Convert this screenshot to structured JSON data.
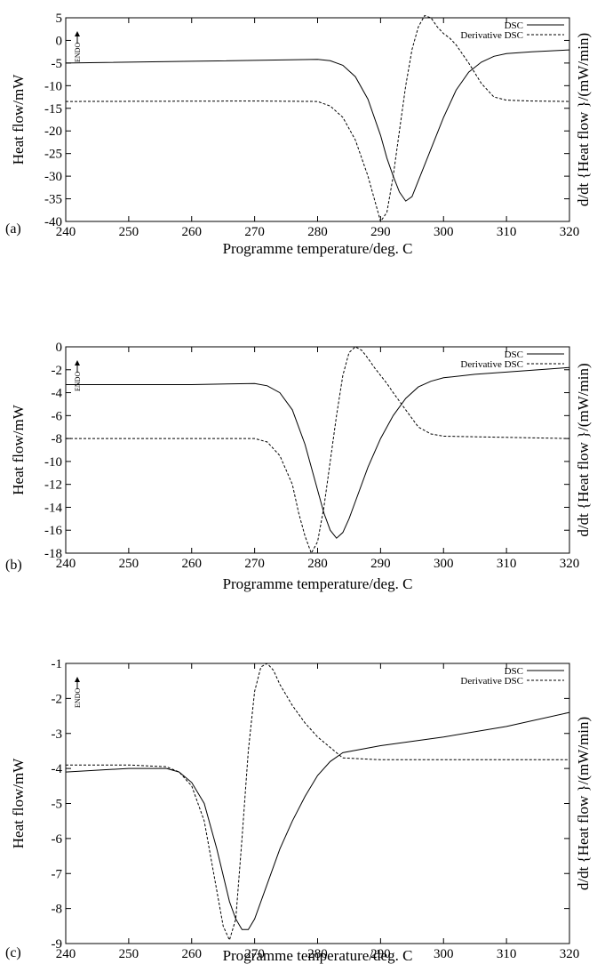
{
  "chart_data": [
    {
      "type": "line",
      "panel_label": "(a)",
      "title": "",
      "xlabel": "Programme temperature/deg. C",
      "ylabel": "Heat flow/mW",
      "ylabel_right": "d/dt {Heat flow }/(mW/min)",
      "endo_label": "ENDO",
      "xlim": [
        240,
        320
      ],
      "ylim": [
        -40,
        5
      ],
      "x_ticks": [
        240,
        250,
        260,
        270,
        280,
        290,
        300,
        310,
        320
      ],
      "y_ticks": [
        -40,
        -35,
        -30,
        -25,
        -20,
        -15,
        -10,
        -5,
        0,
        5
      ],
      "grid": false,
      "legend_position": "top-right",
      "series": [
        {
          "name": "DSC",
          "dash": "solid",
          "x": [
            240,
            260,
            280,
            282,
            284,
            286,
            288,
            290,
            291,
            292,
            293,
            294,
            295,
            296,
            298,
            300,
            302,
            304,
            306,
            308,
            310,
            314,
            320
          ],
          "y": [
            -5.0,
            -4.6,
            -4.2,
            -4.5,
            -5.5,
            -8.0,
            -13.0,
            -21.0,
            -26.0,
            -30.0,
            -33.5,
            -35.5,
            -34.5,
            -31.0,
            -24.0,
            -17.0,
            -11.0,
            -7.0,
            -4.8,
            -3.5,
            -2.9,
            -2.5,
            -2.1
          ]
        },
        {
          "name": "Derivative DSC",
          "dash": "dashed",
          "x": [
            240,
            270,
            280,
            282,
            284,
            286,
            288,
            289,
            290,
            291,
            292,
            293,
            294,
            295,
            296,
            297,
            298,
            299,
            300,
            301,
            302,
            304,
            306,
            308,
            310,
            314,
            320
          ],
          "y": [
            -13.5,
            -13.4,
            -13.5,
            -14.5,
            -17.0,
            -22.0,
            -30.0,
            -35.0,
            -40.0,
            -38.0,
            -30.0,
            -20.0,
            -10.0,
            -2.0,
            3.0,
            5.5,
            5.0,
            3.0,
            1.5,
            0.5,
            -1.0,
            -5.0,
            -9.5,
            -12.5,
            -13.2,
            -13.4,
            -13.5
          ]
        }
      ]
    },
    {
      "type": "line",
      "panel_label": "(b)",
      "title": "",
      "xlabel": "Programme temperature/deg. C",
      "ylabel": "Heat flow/mW",
      "ylabel_right": "d/dt {Heat flow }/(mW/min)",
      "endo_label": "ENDO",
      "xlim": [
        240,
        320
      ],
      "ylim": [
        -18,
        0
      ],
      "x_ticks": [
        240,
        250,
        260,
        270,
        280,
        290,
        300,
        310,
        320
      ],
      "y_ticks": [
        -18,
        -16,
        -14,
        -12,
        -10,
        -8,
        -6,
        -4,
        -2,
        0
      ],
      "grid": false,
      "legend_position": "top-right",
      "series": [
        {
          "name": "DSC",
          "dash": "solid",
          "x": [
            240,
            260,
            270,
            272,
            274,
            276,
            278,
            280,
            281,
            282,
            283,
            284,
            285,
            286,
            288,
            290,
            292,
            294,
            296,
            298,
            300,
            305,
            310,
            320
          ],
          "y": [
            -3.3,
            -3.3,
            -3.2,
            -3.4,
            -4.0,
            -5.5,
            -8.5,
            -12.5,
            -14.5,
            -16.0,
            -16.7,
            -16.2,
            -15.0,
            -13.5,
            -10.5,
            -8.0,
            -6.0,
            -4.5,
            -3.5,
            -3.0,
            -2.7,
            -2.4,
            -2.2,
            -1.8
          ]
        },
        {
          "name": "Derivative DSC",
          "dash": "dashed",
          "x": [
            240,
            260,
            270,
            272,
            274,
            276,
            277,
            278,
            279,
            280,
            281,
            282,
            283,
            284,
            285,
            286,
            287,
            288,
            289,
            290,
            291,
            292,
            294,
            296,
            298,
            300,
            310,
            320
          ],
          "y": [
            -8.0,
            -8.0,
            -8.0,
            -8.3,
            -9.5,
            -12.0,
            -14.5,
            -16.5,
            -18.0,
            -17.0,
            -14.0,
            -10.0,
            -6.0,
            -2.5,
            -0.5,
            0.0,
            -0.3,
            -1.0,
            -1.8,
            -2.5,
            -3.2,
            -4.0,
            -5.5,
            -7.0,
            -7.6,
            -7.8,
            -7.9,
            -8.0
          ]
        }
      ]
    },
    {
      "type": "line",
      "panel_label": "(c)",
      "title": "",
      "xlabel": "Programme temperature/deg. C",
      "ylabel": "Heat flow/mW",
      "ylabel_right": "d/dt {Heat flow }/(mW/min)",
      "endo_label": "ENDO",
      "xlim": [
        240,
        320
      ],
      "ylim": [
        -9,
        -1
      ],
      "x_ticks": [
        240,
        250,
        260,
        270,
        280,
        290,
        300,
        310,
        320
      ],
      "y_ticks": [
        -9,
        -8,
        -7,
        -6,
        -5,
        -4,
        -3,
        -2,
        -1
      ],
      "grid": false,
      "legend_position": "top-right",
      "series": [
        {
          "name": "DSC",
          "dash": "solid",
          "x": [
            240,
            250,
            256,
            258,
            260,
            262,
            264,
            266,
            267,
            268,
            269,
            270,
            272,
            274,
            276,
            278,
            280,
            282,
            284,
            290,
            300,
            310,
            320
          ],
          "y": [
            -4.1,
            -4.0,
            -4.0,
            -4.1,
            -4.4,
            -5.0,
            -6.3,
            -7.8,
            -8.3,
            -8.6,
            -8.6,
            -8.3,
            -7.3,
            -6.3,
            -5.5,
            -4.8,
            -4.2,
            -3.8,
            -3.55,
            -3.35,
            -3.1,
            -2.8,
            -2.4
          ]
        },
        {
          "name": "Derivative DSC",
          "dash": "dashed",
          "x": [
            240,
            250,
            256,
            258,
            260,
            262,
            264,
            265,
            266,
            267,
            268,
            269,
            270,
            271,
            272,
            273,
            274,
            276,
            278,
            280,
            282,
            284,
            290,
            300,
            310,
            320
          ],
          "y": [
            -3.9,
            -3.9,
            -3.95,
            -4.1,
            -4.5,
            -5.5,
            -7.5,
            -8.5,
            -8.9,
            -8.3,
            -6.0,
            -3.5,
            -1.8,
            -1.1,
            -1.0,
            -1.2,
            -1.6,
            -2.2,
            -2.7,
            -3.1,
            -3.4,
            -3.7,
            -3.75,
            -3.75,
            -3.75,
            -3.75
          ]
        }
      ]
    }
  ]
}
